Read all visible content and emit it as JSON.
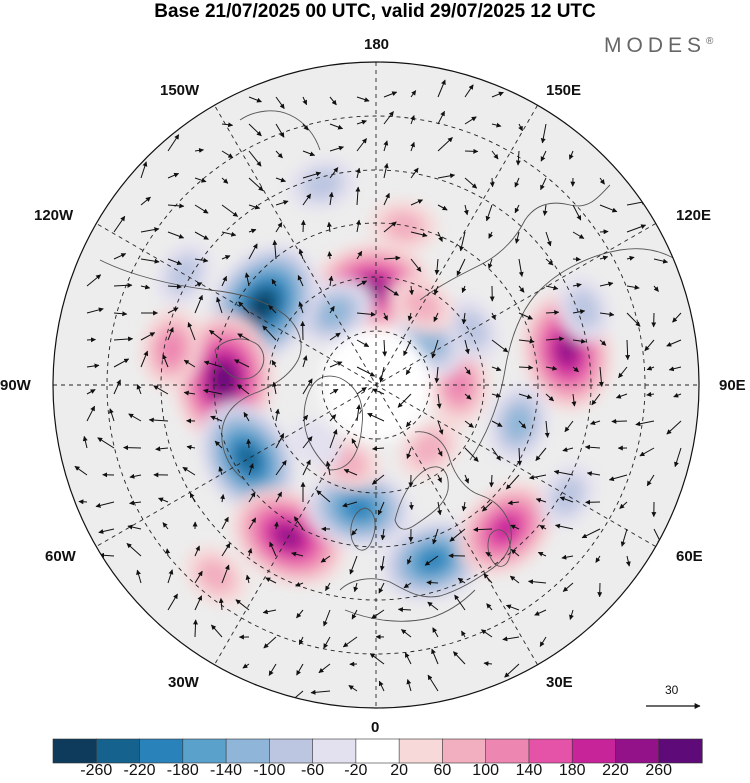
{
  "title": "Base 21/07/2025 00 UTC, valid 29/07/2025 12 UTC",
  "brand": "MODES",
  "brand_mark": "®",
  "lon_labels": {
    "l180": "180",
    "l150e": "150E",
    "l120e": "120E",
    "l90e": "90E",
    "l60e": "60E",
    "l30e": "30E",
    "l0": "0",
    "l30w": "30W",
    "l60w": "60W",
    "l90w": "90W",
    "l120w": "120W",
    "l150w": "150W"
  },
  "reference_vector": "30",
  "colorbar": {
    "ticks": [
      "-260",
      "-220",
      "-180",
      "-140",
      "-100",
      "-60",
      "-20",
      "20",
      "60",
      "100",
      "140",
      "180",
      "220",
      "260"
    ],
    "colors": [
      "#0e3a5c",
      "#15628f",
      "#2a82bb",
      "#5aa1cc",
      "#8fb6d8",
      "#bcc6e1",
      "#e3e0ef",
      "#ffffff",
      "#f7d9d9",
      "#f2afbf",
      "#ee86b2",
      "#e553a8",
      "#c8249a",
      "#93128a",
      "#5e0a78"
    ]
  },
  "anomalies": [
    {
      "name": "pos-chukchi",
      "lon": -178,
      "lat": 69,
      "value": 220
    },
    {
      "name": "pos-bering-sea",
      "lon": 170,
      "lat": 55,
      "value": 60
    },
    {
      "name": "neg-alaska",
      "lon": -145,
      "lat": 68,
      "value": -20
    },
    {
      "name": "neg-beaufort",
      "lon": -150,
      "lat": 72,
      "value": -100
    },
    {
      "name": "neg-western-canada",
      "lon": -125,
      "lat": 60,
      "value": -260
    },
    {
      "name": "pos-hudson-bay",
      "lon": -92,
      "lat": 57,
      "value": 260
    },
    {
      "name": "pos-north-america",
      "lon": -100,
      "lat": 45,
      "value": 100
    },
    {
      "name": "neg-labrador",
      "lon": -60,
      "lat": 58,
      "value": -220
    },
    {
      "name": "pos-north-atlantic",
      "lon": -30,
      "lat": 52,
      "value": 220
    },
    {
      "name": "neg-iceland",
      "lon": -8,
      "lat": 63,
      "value": -180
    },
    {
      "name": "neg-central-europe",
      "lon": 18,
      "lat": 50,
      "value": -180
    },
    {
      "name": "pos-black-sea",
      "lon": 42,
      "lat": 48,
      "value": 180
    },
    {
      "name": "pos-central-siberia",
      "lon": 100,
      "lat": 48,
      "value": 220
    },
    {
      "name": "neg-west-siberia",
      "lon": 75,
      "lat": 58,
      "value": -100
    },
    {
      "name": "pos-kara-sea",
      "lon": 90,
      "lat": 72,
      "value": 100
    },
    {
      "name": "neg-east-siberia",
      "lon": 120,
      "lat": 66,
      "value": -60
    },
    {
      "name": "neg-laptev",
      "lon": 130,
      "lat": 75,
      "value": -100
    },
    {
      "name": "pos-east-siberia",
      "lon": 150,
      "lat": 70,
      "value": 60
    },
    {
      "name": "neg-mongolia",
      "lon": 110,
      "lat": 42,
      "value": -60
    },
    {
      "name": "neg-kazakhstan",
      "lon": 60,
      "lat": 42,
      "value": -60
    },
    {
      "name": "pos-barents",
      "lon": 40,
      "lat": 72,
      "value": 60
    },
    {
      "name": "pos-greenland-sea",
      "lon": -20,
      "lat": 72,
      "value": 60
    },
    {
      "name": "neg-greenland",
      "lon": -45,
      "lat": 72,
      "value": -20
    },
    {
      "name": "pos-mid-atlantic",
      "lon": -40,
      "lat": 36,
      "value": 60
    },
    {
      "name": "neg-north-pacific",
      "lon": -165,
      "lat": 45,
      "value": -60
    },
    {
      "name": "neg-western-us",
      "lon": -120,
      "lat": 42,
      "value": -60
    }
  ]
}
